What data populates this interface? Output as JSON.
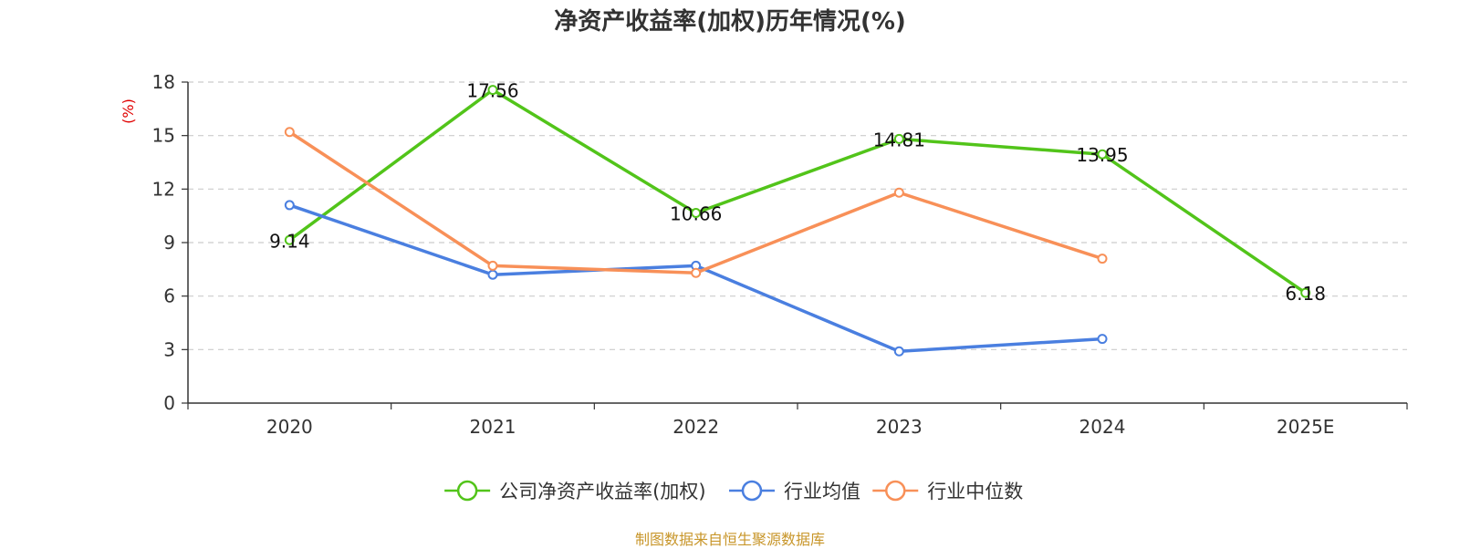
{
  "chart_data": {
    "type": "line",
    "title": "净资产收益率(加权)历年情况(%)",
    "ylabel": "(%)",
    "xlabel": "",
    "categories": [
      "2020",
      "2021",
      "2022",
      "2023",
      "2024",
      "2025E"
    ],
    "ylim": [
      0,
      18
    ],
    "yticks": [
      0,
      3,
      6,
      9,
      12,
      15,
      18
    ],
    "grid": true,
    "legend_position": "bottom",
    "series": [
      {
        "name": "公司净资产收益率(加权)",
        "color": "#52c41a",
        "values": [
          9.14,
          17.56,
          10.66,
          14.81,
          13.95,
          6.18
        ],
        "labels": [
          "9.14",
          "17.56",
          "10.66",
          "14.81",
          "13.95",
          "6.18"
        ]
      },
      {
        "name": "行业均值",
        "color": "#4a7fe0",
        "values": [
          11.1,
          7.2,
          7.7,
          2.9,
          3.6,
          null
        ]
      },
      {
        "name": "行业中位数",
        "color": "#f89058",
        "values": [
          15.2,
          7.7,
          7.3,
          11.8,
          8.1,
          null
        ]
      }
    ]
  },
  "source": "制图数据来自恒生聚源数据库"
}
